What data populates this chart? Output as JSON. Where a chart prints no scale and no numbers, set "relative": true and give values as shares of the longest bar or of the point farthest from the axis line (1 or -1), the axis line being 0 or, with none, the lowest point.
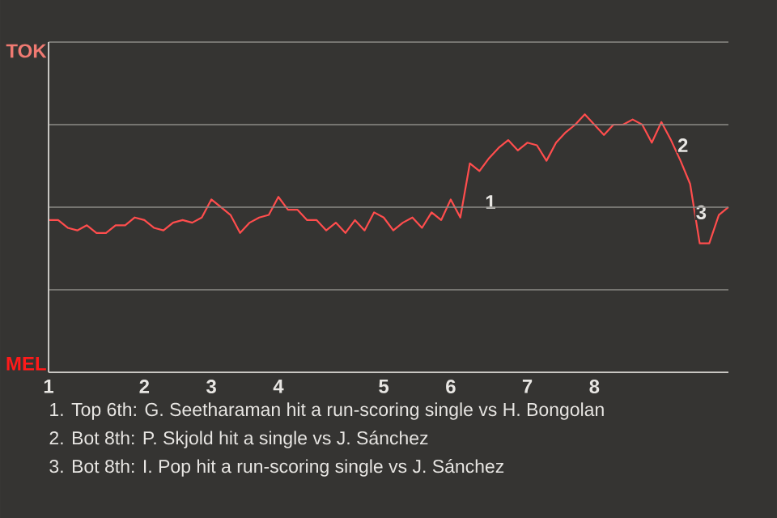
{
  "chart_data": {
    "type": "line",
    "categories": [
      "1",
      null,
      null,
      null,
      null,
      null,
      null,
      null,
      null,
      null,
      "2",
      null,
      null,
      null,
      null,
      null,
      null,
      "3",
      null,
      null,
      null,
      null,
      null,
      null,
      "4",
      null,
      null,
      null,
      null,
      null,
      null,
      null,
      null,
      null,
      null,
      "5",
      null,
      null,
      null,
      null,
      null,
      null,
      "6",
      null,
      null,
      null,
      null,
      null,
      null,
      null,
      "7",
      null,
      null,
      null,
      null,
      null,
      null,
      "8",
      null,
      null,
      null,
      null,
      null,
      null,
      null,
      null,
      null,
      null,
      null,
      null,
      null,
      null
    ],
    "values": [
      0.59,
      0.59,
      0.56,
      0.55,
      0.57,
      0.54,
      0.54,
      0.57,
      0.57,
      0.6,
      0.59,
      0.56,
      0.55,
      0.58,
      0.59,
      0.58,
      0.6,
      0.67,
      0.64,
      0.61,
      0.54,
      0.58,
      0.6,
      0.61,
      0.68,
      0.63,
      0.63,
      0.59,
      0.59,
      0.55,
      0.58,
      0.54,
      0.59,
      0.55,
      0.62,
      0.6,
      0.55,
      0.58,
      0.6,
      0.56,
      0.62,
      0.59,
      0.67,
      0.6,
      0.81,
      0.78,
      0.83,
      0.87,
      0.9,
      0.86,
      0.89,
      0.88,
      0.82,
      0.89,
      0.93,
      0.96,
      1,
      0.96,
      0.92,
      0.96,
      0.96,
      0.98,
      0.96,
      0.89,
      0.97,
      0.9,
      0.82,
      0.73,
      0.5,
      0.5,
      0.61,
      0.64
    ],
    "color": "#ff4d4d",
    "relative": true,
    "grid": "y",
    "annotations": [
      {
        "text": "1",
        "y": 0.66
      },
      {
        "text": "2",
        "y": 0.88
      },
      {
        "text": "3",
        "y": 0.62
      },
      "TOK",
      "MEL",
      "1. Top 6th: G. Seetharaman hit a run-scoring single vs H. Bongolan",
      "2. Bot 8th: P. Skjold hit a single vs J. Sánchez",
      "3. Bot 8th: I. Pop hit a run-scoring single vs J. Sánchez"
    ]
  }
}
